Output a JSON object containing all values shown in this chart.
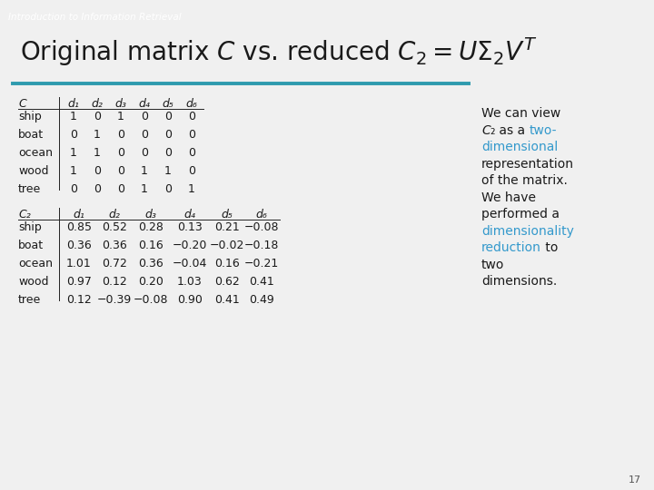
{
  "header_bg": "#1E5F6B",
  "header_text": "Introduction to Information Retrieval",
  "header_text_color": "#ffffff",
  "bg_color": "#f0f0f0",
  "content_bg": "#ffffff",
  "accent_line_color": "#2E9BAE",
  "teal_sq_color": "#3AACBE",
  "table_C_header": [
    "C",
    "d₁",
    "d₂",
    "d₃",
    "d₄",
    "d₅",
    "d₆"
  ],
  "table_C_rows": [
    [
      "ship",
      "1",
      "0",
      "1",
      "0",
      "0",
      "0"
    ],
    [
      "boat",
      "0",
      "1",
      "0",
      "0",
      "0",
      "0"
    ],
    [
      "ocean",
      "1",
      "1",
      "0",
      "0",
      "0",
      "0"
    ],
    [
      "wood",
      "1",
      "0",
      "0",
      "1",
      "1",
      "0"
    ],
    [
      "tree",
      "0",
      "0",
      "0",
      "1",
      "0",
      "1"
    ]
  ],
  "table_C2_header": [
    "C₂",
    "d₁",
    "d₂",
    "d₃",
    "d₄",
    "d₅",
    "d₆"
  ],
  "table_C2_rows": [
    [
      "ship",
      "0.85",
      "0.52",
      "0.28",
      "0.13",
      "0.21",
      "−0.08"
    ],
    [
      "boat",
      "0.36",
      "0.36",
      "0.16",
      "−0.20",
      "−0.02",
      "−0.18"
    ],
    [
      "ocean",
      "1.01",
      "0.72",
      "0.36",
      "−0.04",
      "0.16",
      "−0.21"
    ],
    [
      "wood",
      "0.97",
      "0.12",
      "0.20",
      "1.03",
      "0.62",
      "0.41"
    ],
    [
      "tree",
      "0.12",
      "−0.39",
      "−0.08",
      "0.90",
      "0.41",
      "0.49"
    ]
  ],
  "side_lines": [
    [
      [
        "We can view",
        "#1a1a1a",
        false
      ]
    ],
    [
      [
        "C",
        "#1a1a1a",
        true
      ],
      [
        "₂",
        "#1a1a1a",
        false
      ],
      [
        " as a ",
        "#1a1a1a",
        false
      ],
      [
        "two-",
        "#3399cc",
        false
      ]
    ],
    [
      [
        "dimensional",
        "#3399cc",
        false
      ]
    ],
    [
      [
        "representation",
        "#1a1a1a",
        false
      ]
    ],
    [
      [
        "of the matrix.",
        "#1a1a1a",
        false
      ]
    ],
    [
      [
        "We have",
        "#1a1a1a",
        false
      ]
    ],
    [
      [
        "performed a",
        "#1a1a1a",
        false
      ]
    ],
    [
      [
        "dimensionality",
        "#3399cc",
        false
      ]
    ],
    [
      [
        "reduction",
        "#3399cc",
        false
      ],
      [
        " to",
        "#1a1a1a",
        false
      ]
    ],
    [
      [
        "two",
        "#1a1a1a",
        false
      ]
    ],
    [
      [
        "dimensions.",
        "#1a1a1a",
        false
      ]
    ]
  ],
  "page_number": "17"
}
